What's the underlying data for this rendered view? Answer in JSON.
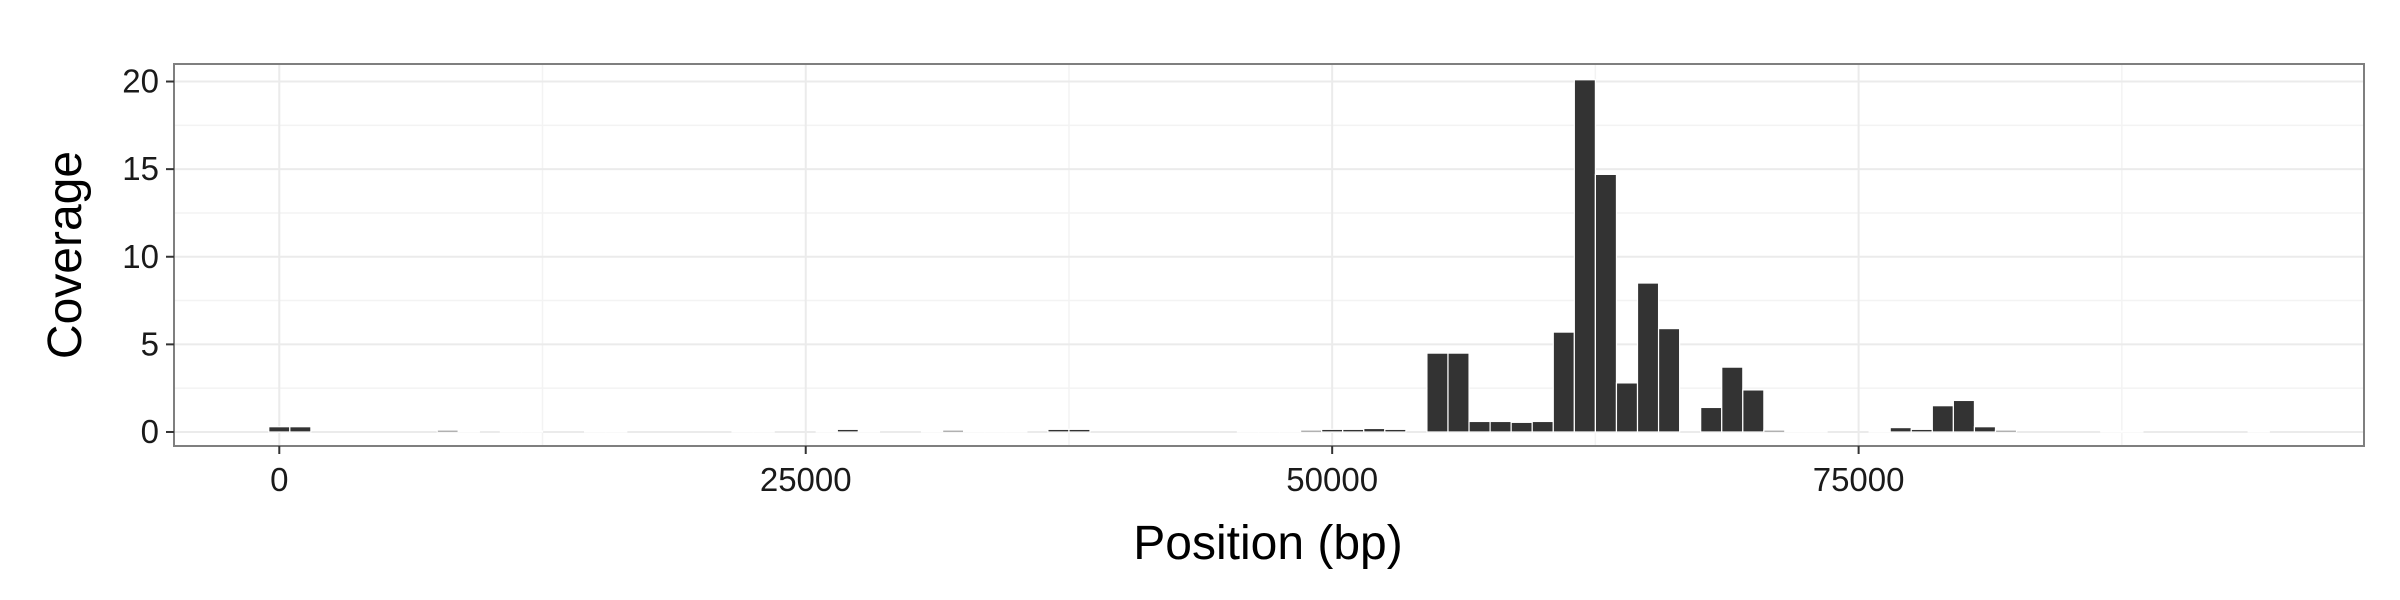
{
  "chart_data": {
    "type": "bar",
    "title": "",
    "xlabel": "Position (bp)",
    "ylabel": "Coverage",
    "xlim": [
      -5000,
      99000
    ],
    "ylim": [
      -0.8,
      21.0
    ],
    "x_ticks": [
      0,
      25000,
      50000,
      75000
    ],
    "x_tick_labels": [
      "0",
      "25000",
      "50000",
      "75000"
    ],
    "y_ticks": [
      0,
      5,
      10,
      15,
      20
    ],
    "y_tick_labels": [
      "0",
      "5",
      "10",
      "15",
      "20"
    ],
    "grid": true,
    "legend": "none",
    "bin_width": 1000,
    "bar_color": "#333333",
    "panel_border_color": "#7f7f7f",
    "grid_color": "#ebebeb",
    "bars": [
      {
        "x": 0,
        "y": 0.3
      },
      {
        "x": 1000,
        "y": 0.3
      },
      {
        "x": 8000,
        "y": 0.1
      },
      {
        "x": 9000,
        "y": 0.05
      },
      {
        "x": 11000,
        "y": 0.05
      },
      {
        "x": 12000,
        "y": 0.05
      },
      {
        "x": 15000,
        "y": 0.05
      },
      {
        "x": 16000,
        "y": 0.05
      },
      {
        "x": 22000,
        "y": 0.05
      },
      {
        "x": 23000,
        "y": 0.05
      },
      {
        "x": 26000,
        "y": 0.05
      },
      {
        "x": 27000,
        "y": 0.15
      },
      {
        "x": 28000,
        "y": 0.05
      },
      {
        "x": 31000,
        "y": 0.05
      },
      {
        "x": 32000,
        "y": 0.1
      },
      {
        "x": 33000,
        "y": 0.05
      },
      {
        "x": 34000,
        "y": 0.05
      },
      {
        "x": 35000,
        "y": 0.05
      },
      {
        "x": 37000,
        "y": 0.15
      },
      {
        "x": 38000,
        "y": 0.15
      },
      {
        "x": 46000,
        "y": 0.05
      },
      {
        "x": 47000,
        "y": 0.05
      },
      {
        "x": 48000,
        "y": 0.05
      },
      {
        "x": 49000,
        "y": 0.1
      },
      {
        "x": 50000,
        "y": 0.15
      },
      {
        "x": 51000,
        "y": 0.15
      },
      {
        "x": 52000,
        "y": 0.2
      },
      {
        "x": 53000,
        "y": 0.15
      },
      {
        "x": 55000,
        "y": 4.5
      },
      {
        "x": 56000,
        "y": 4.5
      },
      {
        "x": 57000,
        "y": 0.6
      },
      {
        "x": 58000,
        "y": 0.6
      },
      {
        "x": 59000,
        "y": 0.55
      },
      {
        "x": 60000,
        "y": 0.6
      },
      {
        "x": 61000,
        "y": 5.7
      },
      {
        "x": 62000,
        "y": 20.1
      },
      {
        "x": 63000,
        "y": 14.7
      },
      {
        "x": 64000,
        "y": 2.8
      },
      {
        "x": 65000,
        "y": 8.5
      },
      {
        "x": 66000,
        "y": 5.9
      },
      {
        "x": 68000,
        "y": 1.4
      },
      {
        "x": 69000,
        "y": 3.7
      },
      {
        "x": 70000,
        "y": 2.4
      },
      {
        "x": 71000,
        "y": 0.1
      },
      {
        "x": 72000,
        "y": 0.05
      },
      {
        "x": 73000,
        "y": 0.05
      },
      {
        "x": 76000,
        "y": 0.05
      },
      {
        "x": 77000,
        "y": 0.25
      },
      {
        "x": 78000,
        "y": 0.15
      },
      {
        "x": 79000,
        "y": 1.5
      },
      {
        "x": 80000,
        "y": 1.8
      },
      {
        "x": 81000,
        "y": 0.3
      },
      {
        "x": 82000,
        "y": 0.1
      },
      {
        "x": 87000,
        "y": 0.05
      },
      {
        "x": 88000,
        "y": 0.05
      },
      {
        "x": 94000,
        "y": 0.05
      }
    ]
  }
}
